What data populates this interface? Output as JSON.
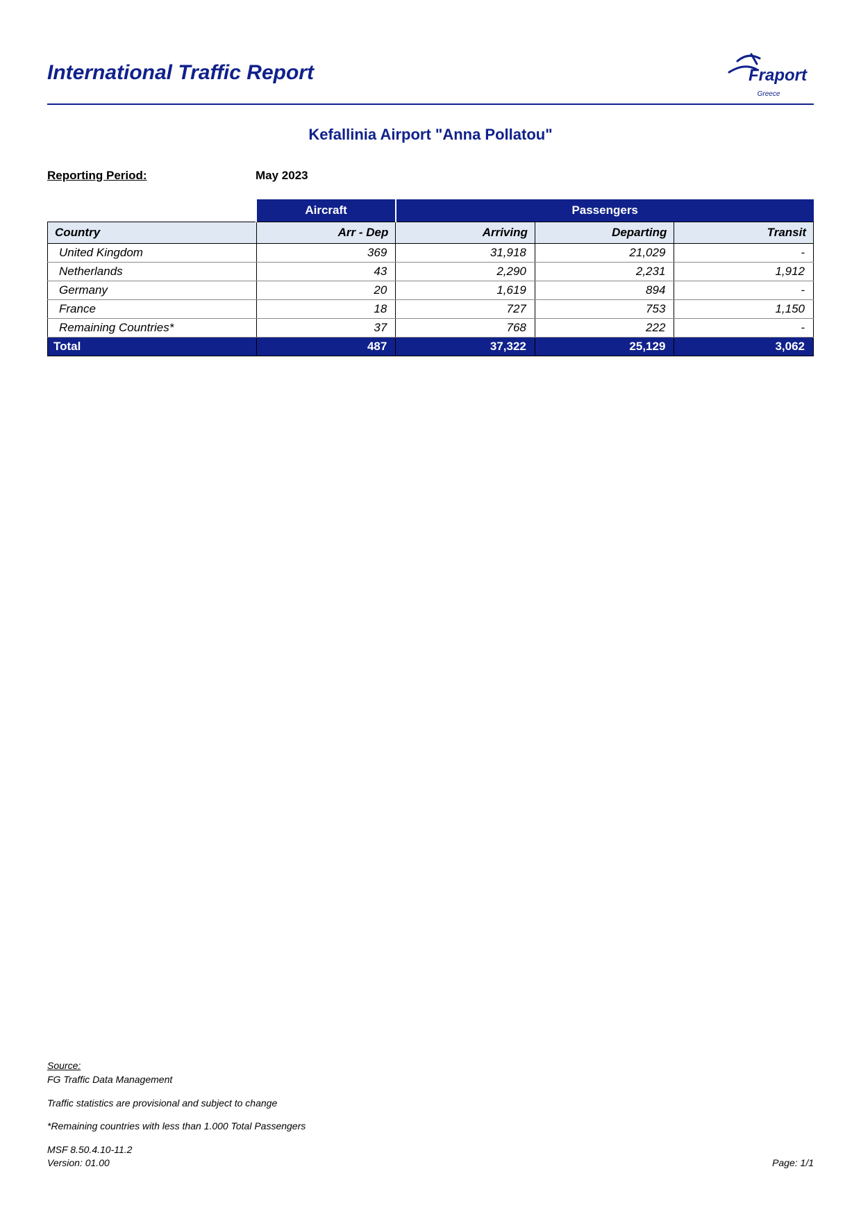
{
  "header": {
    "title": "International Traffic Report",
    "logo_text": "Fraport",
    "logo_sub": "Greece",
    "logo_color": "#10218b"
  },
  "subtitle": "Kefallinia Airport \"Anna Pollatou\"",
  "period": {
    "label": "Reporting Period:",
    "value": "May 2023"
  },
  "table": {
    "group_headers": {
      "aircraft": "Aircraft",
      "passengers": "Passengers"
    },
    "columns": {
      "country": "Country",
      "aircraft": "Arr - Dep",
      "arriving": "Arriving",
      "departing": "Departing",
      "transit": "Transit"
    },
    "rows": [
      {
        "country": "United Kingdom",
        "aircraft": "369",
        "arriving": "31,918",
        "departing": "21,029",
        "transit": "-"
      },
      {
        "country": "Netherlands",
        "aircraft": "43",
        "arriving": "2,290",
        "departing": "2,231",
        "transit": "1,912"
      },
      {
        "country": "Germany",
        "aircraft": "20",
        "arriving": "1,619",
        "departing": "894",
        "transit": "-"
      },
      {
        "country": "France",
        "aircraft": "18",
        "arriving": "727",
        "departing": "753",
        "transit": "1,150"
      },
      {
        "country": "Remaining Countries*",
        "aircraft": "37",
        "arriving": "768",
        "departing": "222",
        "transit": "-"
      }
    ],
    "total": {
      "country": "Total",
      "aircraft": "487",
      "arriving": "37,322",
      "departing": "25,129",
      "transit": "3,062"
    }
  },
  "footer": {
    "source_label": "Source:",
    "source_value": "FG Traffic Data Management",
    "note1": "Traffic statistics are provisional and subject to change",
    "note2": "*Remaining countries with less than 1.000 Total Passengers",
    "ref": "MSF 8.50.4.10-11.2",
    "version": "Version: 01.00",
    "page": "Page: 1/1"
  },
  "colors": {
    "brand": "#10218b",
    "header_bg": "#e0e8f4",
    "white": "#ffffff"
  }
}
